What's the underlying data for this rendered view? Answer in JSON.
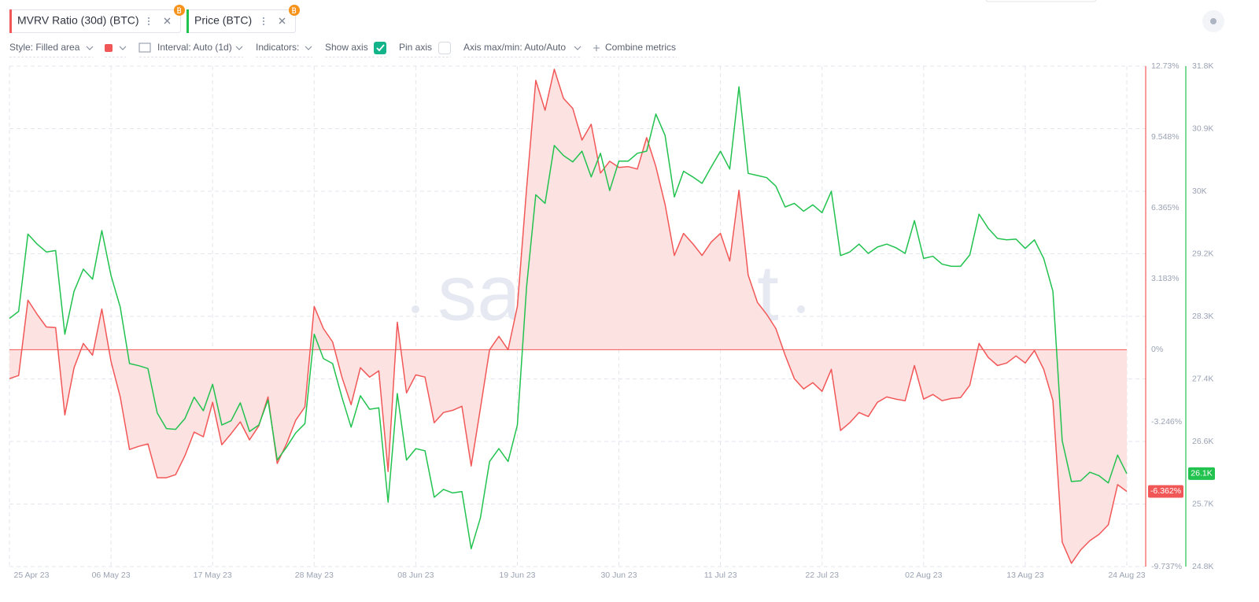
{
  "toolbar": {
    "style": "Style: Filled area",
    "interval": "Interval: Auto (1d)",
    "indicators": "Indicators:",
    "show_axis": "Show axis",
    "pin_axis": "Pin axis",
    "axis_range": "Axis max/min: Auto/Auto",
    "combine": "Combine metrics"
  },
  "watermark": "santiment",
  "chart_data": {
    "type": "line",
    "x": [
      "2023-04-25",
      "2023-04-26",
      "2023-04-27",
      "2023-04-28",
      "2023-04-29",
      "2023-04-30",
      "2023-05-01",
      "2023-05-02",
      "2023-05-03",
      "2023-05-04",
      "2023-05-05",
      "2023-05-06",
      "2023-05-07",
      "2023-05-08",
      "2023-05-09",
      "2023-05-10",
      "2023-05-11",
      "2023-05-12",
      "2023-05-13",
      "2023-05-14",
      "2023-05-15",
      "2023-05-16",
      "2023-05-17",
      "2023-05-18",
      "2023-05-19",
      "2023-05-20",
      "2023-05-21",
      "2023-05-22",
      "2023-05-23",
      "2023-05-24",
      "2023-05-25",
      "2023-05-26",
      "2023-05-27",
      "2023-05-28",
      "2023-05-29",
      "2023-05-30",
      "2023-05-31",
      "2023-06-01",
      "2023-06-02",
      "2023-06-03",
      "2023-06-04",
      "2023-06-05",
      "2023-06-06",
      "2023-06-07",
      "2023-06-08",
      "2023-06-09",
      "2023-06-10",
      "2023-06-11",
      "2023-06-12",
      "2023-06-13",
      "2023-06-14",
      "2023-06-15",
      "2023-06-16",
      "2023-06-17",
      "2023-06-18",
      "2023-06-19",
      "2023-06-20",
      "2023-06-21",
      "2023-06-22",
      "2023-06-23",
      "2023-06-24",
      "2023-06-25",
      "2023-06-26",
      "2023-06-27",
      "2023-06-28",
      "2023-06-29",
      "2023-06-30",
      "2023-07-01",
      "2023-07-02",
      "2023-07-03",
      "2023-07-04",
      "2023-07-05",
      "2023-07-06",
      "2023-07-07",
      "2023-07-08",
      "2023-07-09",
      "2023-07-10",
      "2023-07-11",
      "2023-07-12",
      "2023-07-13",
      "2023-07-14",
      "2023-07-15",
      "2023-07-16",
      "2023-07-17",
      "2023-07-18",
      "2023-07-19",
      "2023-07-20",
      "2023-07-21",
      "2023-07-22",
      "2023-07-23",
      "2023-07-24",
      "2023-07-25",
      "2023-07-26",
      "2023-07-27",
      "2023-07-28",
      "2023-07-29",
      "2023-07-30",
      "2023-07-31",
      "2023-08-01",
      "2023-08-02",
      "2023-08-03",
      "2023-08-04",
      "2023-08-05",
      "2023-08-06",
      "2023-08-07",
      "2023-08-08",
      "2023-08-09",
      "2023-08-10",
      "2023-08-11",
      "2023-08-12",
      "2023-08-13",
      "2023-08-14",
      "2023-08-15",
      "2023-08-16",
      "2023-08-17",
      "2023-08-18",
      "2023-08-19",
      "2023-08-20",
      "2023-08-21",
      "2023-08-22",
      "2023-08-23",
      "2023-08-24"
    ],
    "xlim": [
      "2023-04-25",
      "2023-08-24"
    ],
    "xticks": [
      {
        "value": "2023-04-25",
        "label": "25 Apr 23"
      },
      {
        "value": "2023-05-06",
        "label": "06 May 23"
      },
      {
        "value": "2023-05-17",
        "label": "17 May 23"
      },
      {
        "value": "2023-05-28",
        "label": "28 May 23"
      },
      {
        "value": "2023-06-08",
        "label": "08 Jun 23"
      },
      {
        "value": "2023-06-19",
        "label": "19 Jun 23"
      },
      {
        "value": "2023-06-30",
        "label": "30 Jun 23"
      },
      {
        "value": "2023-07-11",
        "label": "11 Jul 23"
      },
      {
        "value": "2023-07-22",
        "label": "22 Jul 23"
      },
      {
        "value": "2023-08-02",
        "label": "02 Aug 23"
      },
      {
        "value": "2023-08-13",
        "label": "13 Aug 23"
      },
      {
        "value": "2023-08-24",
        "label": "24 Aug 23"
      }
    ],
    "ylim": [
      -9.737,
      12.73
    ],
    "yticks": [
      {
        "value": 12.73,
        "label": "12.73%"
      },
      {
        "value": 9.548,
        "label": "9.548%"
      },
      {
        "value": 6.365,
        "label": "6.365%"
      },
      {
        "value": 3.183,
        "label": "3.183%"
      },
      {
        "value": 0,
        "label": "0%"
      },
      {
        "value": -3.246,
        "label": "-3.246%"
      },
      {
        "value": -9.737,
        "label": "-9.737%"
      }
    ],
    "y2lim": [
      24800,
      31800
    ],
    "y2ticks": [
      {
        "value": 31800,
        "label": "31.8K"
      },
      {
        "value": 30925,
        "label": "30.9K"
      },
      {
        "value": 30050,
        "label": "30K"
      },
      {
        "value": 29175,
        "label": "29.2K"
      },
      {
        "value": 28300,
        "label": "28.3K"
      },
      {
        "value": 27425,
        "label": "27.4K"
      },
      {
        "value": 26550,
        "label": "26.6K"
      },
      {
        "value": 25675,
        "label": "25.7K"
      },
      {
        "value": 24800,
        "label": "24.8K"
      }
    ],
    "grid": true,
    "series": [
      {
        "name": "MVRV Ratio (30d) (BTC)",
        "type": "area",
        "color": "#f25757",
        "fill": "#fde2e2",
        "axis": "y",
        "last_value_label": "-6.362%",
        "values": [
          -1.3,
          -1.16,
          2.22,
          1.59,
          1.02,
          0.99,
          -2.93,
          -0.81,
          0.28,
          -0.25,
          1.83,
          -0.53,
          -2.12,
          -4.48,
          -4.34,
          -4.23,
          -5.75,
          -5.75,
          -5.61,
          -4.76,
          -3.7,
          -3.91,
          -2.36,
          -4.27,
          -3.77,
          -3.24,
          -4.05,
          -3.42,
          -2.12,
          -5.11,
          -4.23,
          -3.17,
          -2.57,
          1.94,
          0.95,
          0.35,
          -1.23,
          -2.47,
          -0.81,
          -1.23,
          -0.95,
          -5.47,
          1.23,
          -1.94,
          -1.13,
          -1.23,
          -3.28,
          -2.82,
          -2.72,
          -2.54,
          -5.22,
          -2.64,
          0,
          0.6,
          0,
          1.94,
          7.23,
          12.09,
          10.75,
          12.59,
          11.28,
          10.83,
          9.41,
          10.12,
          7.93,
          8.46,
          8.18,
          8.22,
          8.11,
          9.52,
          8.22,
          6.52,
          4.23,
          5.22,
          4.76,
          4.23,
          4.83,
          5.22,
          3.98,
          7.16,
          3.35,
          2.12,
          1.59,
          0.95,
          -0.25,
          -1.3,
          -1.76,
          -1.48,
          -1.87,
          -0.88,
          -3.63,
          -3.28,
          -2.82,
          -3.0,
          -2.36,
          -2.12,
          -2.22,
          -2.29,
          -0.71,
          -2.22,
          -2.01,
          -2.29,
          -2.19,
          -2.15,
          -1.59,
          0.28,
          -0.35,
          -0.71,
          -0.6,
          -0.28,
          -0.6,
          -0.04,
          -0.88,
          -2.29,
          -8.64,
          -9.59,
          -8.99,
          -8.57,
          -8.29,
          -7.86,
          -6.06,
          -6.362
        ]
      },
      {
        "name": "Price (BTC)",
        "type": "line",
        "color": "#22c24f",
        "axis": "y2",
        "last_value_label": "26.1K",
        "values": [
          28270,
          28370,
          29450,
          29310,
          29200,
          29220,
          28050,
          28650,
          28960,
          28820,
          29500,
          28870,
          28430,
          27640,
          27610,
          27570,
          26950,
          26730,
          26720,
          26870,
          27170,
          26980,
          27350,
          26780,
          26840,
          27090,
          26690,
          26780,
          27130,
          26290,
          26470,
          26670,
          26800,
          28050,
          27710,
          27640,
          27170,
          26750,
          27190,
          27000,
          27020,
          25700,
          27220,
          26290,
          26450,
          26420,
          25770,
          25880,
          25830,
          25850,
          25050,
          25480,
          26270,
          26450,
          26270,
          26780,
          28710,
          30000,
          29880,
          30690,
          30550,
          30460,
          30610,
          30250,
          30580,
          30060,
          30470,
          30470,
          30580,
          30610,
          31130,
          30830,
          29970,
          30330,
          30250,
          30160,
          30390,
          30610,
          30360,
          31510,
          30300,
          30270,
          30240,
          30120,
          29830,
          29880,
          29770,
          29860,
          29750,
          30050,
          29150,
          29200,
          29310,
          29180,
          29270,
          29310,
          29260,
          29180,
          29640,
          29110,
          29140,
          29030,
          29000,
          29000,
          29160,
          29730,
          29530,
          29390,
          29370,
          29380,
          29250,
          29370,
          29110,
          28650,
          26560,
          25990,
          26000,
          26120,
          26070,
          25970,
          26360,
          26100
        ]
      }
    ]
  }
}
